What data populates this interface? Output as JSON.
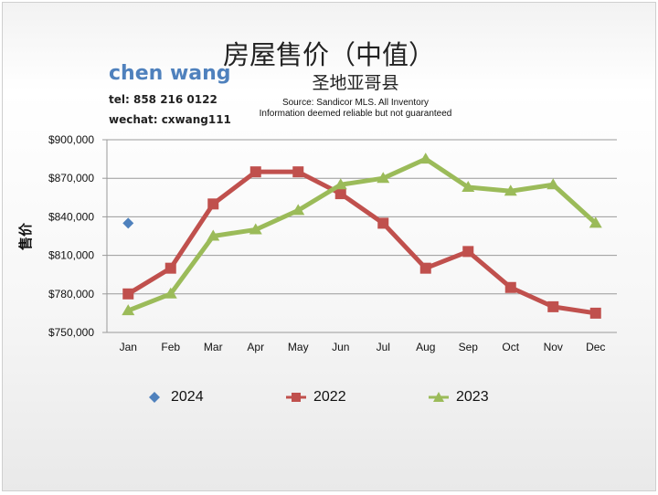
{
  "header": {
    "title": "房屋售价（中值）",
    "subtitle": "圣地亚哥县",
    "source_line1": "Source: Sandicor MLS. All Inventory",
    "source_line2": "Information deemed reliable but not guaranteed"
  },
  "agent": {
    "name": "chen wang",
    "tel": "tel: 858 216 0122",
    "wechat": "wechat: cxwang111"
  },
  "colors": {
    "series_2024": "#4f81bd",
    "series_2022": "#c0504d",
    "series_2023": "#9bbb59"
  },
  "chart_data": {
    "type": "line",
    "title": "房屋售价（中值）",
    "ylabel": "售价",
    "xlabel": "",
    "categories": [
      "Jan",
      "Feb",
      "Mar",
      "Apr",
      "May",
      "Jun",
      "Jul",
      "Aug",
      "Sep",
      "Oct",
      "Nov",
      "Dec"
    ],
    "ylim": [
      750000,
      900000
    ],
    "yticks": [
      {
        "value": 750000,
        "label": "$750,000"
      },
      {
        "value": 780000,
        "label": "$780,000"
      },
      {
        "value": 810000,
        "label": "$810,000"
      },
      {
        "value": 840000,
        "label": "$840,000"
      },
      {
        "value": 870000,
        "label": "$870,000"
      },
      {
        "value": 900000,
        "label": "$900,000"
      }
    ],
    "grid": "horizontal",
    "legend_position": "bottom",
    "series": [
      {
        "name": "2024",
        "marker": "diamond",
        "color": "#4f81bd",
        "values": [
          835000,
          null,
          null,
          null,
          null,
          null,
          null,
          null,
          null,
          null,
          null,
          null
        ]
      },
      {
        "name": "2022",
        "marker": "square",
        "color": "#c0504d",
        "values": [
          780000,
          800000,
          850000,
          875000,
          875000,
          858000,
          835000,
          800000,
          813000,
          785000,
          770000,
          765000
        ]
      },
      {
        "name": "2023",
        "marker": "triangle",
        "color": "#9bbb59",
        "values": [
          767000,
          780000,
          825000,
          830000,
          845000,
          865000,
          870000,
          885000,
          863000,
          860000,
          865000,
          835000
        ]
      }
    ]
  }
}
